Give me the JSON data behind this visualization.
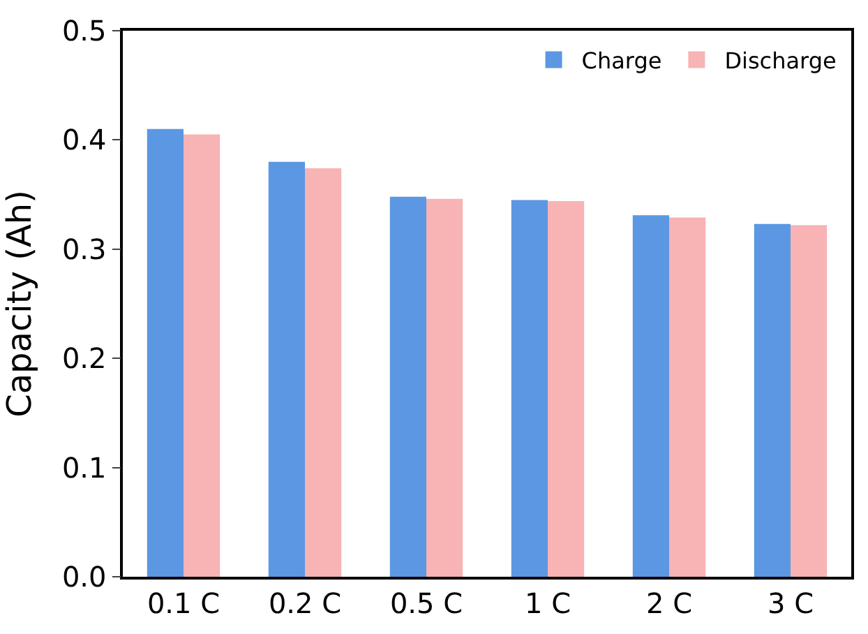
{
  "chart_data": {
    "type": "bar",
    "ylabel": "Capacity (Ah)",
    "categories": [
      "0.1 C",
      "0.2 C",
      "0.5 C",
      "1 C",
      "2 C",
      "3 C"
    ],
    "series": [
      {
        "name": "Charge",
        "color": "#5b97e3",
        "values": [
          0.41,
          0.38,
          0.348,
          0.345,
          0.331,
          0.323
        ]
      },
      {
        "name": "Discharge",
        "color": "#f8b3b5",
        "values": [
          0.405,
          0.374,
          0.346,
          0.344,
          0.329,
          0.322
        ]
      }
    ],
    "ylim": [
      0,
      0.5
    ],
    "yticks": [
      {
        "value": 0,
        "label": "0.0"
      },
      0.1,
      0.2,
      0.3,
      0.4,
      0.5
    ],
    "legend": "top right"
  }
}
